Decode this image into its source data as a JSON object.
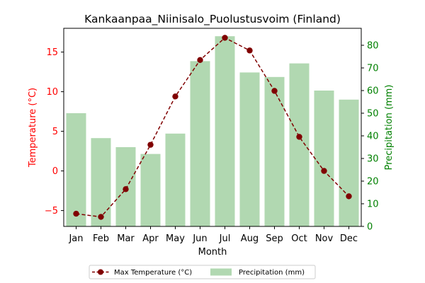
{
  "chart_data": {
    "type": "bar+line",
    "title": "Kankaanpaa_Niinisalo_Puolustusvoim (Finland)",
    "xlabel": "Month",
    "categories": [
      "Jan",
      "Feb",
      "Mar",
      "Apr",
      "May",
      "Jun",
      "Jul",
      "Aug",
      "Sep",
      "Oct",
      "Nov",
      "Dec"
    ],
    "y_left": {
      "label": "Temperature (°C)",
      "color": "#ff0000",
      "range": [
        -7,
        18
      ],
      "ticks": [
        -5,
        0,
        5,
        10,
        15
      ],
      "tick_labels": [
        "−5",
        "0",
        "5",
        "10",
        "15"
      ]
    },
    "y_right": {
      "label": "Precipitation (mm)",
      "color": "#008000",
      "range": [
        0,
        87.5
      ],
      "ticks": [
        0,
        10,
        20,
        30,
        40,
        50,
        60,
        70,
        80
      ],
      "tick_labels": [
        "0",
        "10",
        "20",
        "30",
        "40",
        "50",
        "60",
        "70",
        "80"
      ]
    },
    "series": [
      {
        "name": "Max Temperature (°C)",
        "type": "line",
        "axis": "left",
        "color": "#800000",
        "style": "dashed",
        "marker": "circle",
        "values": [
          -5.4,
          -5.8,
          -2.3,
          3.3,
          9.4,
          14.0,
          16.8,
          15.2,
          10.1,
          4.3,
          0.0,
          -3.2
        ]
      },
      {
        "name": "Precipitation (mm)",
        "type": "bar",
        "axis": "right",
        "color": "#b1d8b1",
        "values": [
          50,
          39,
          35,
          32,
          41,
          73,
          84,
          68,
          66,
          72,
          60,
          56
        ]
      }
    ],
    "legend": {
      "placement": "bottom-center"
    },
    "grid": false
  }
}
